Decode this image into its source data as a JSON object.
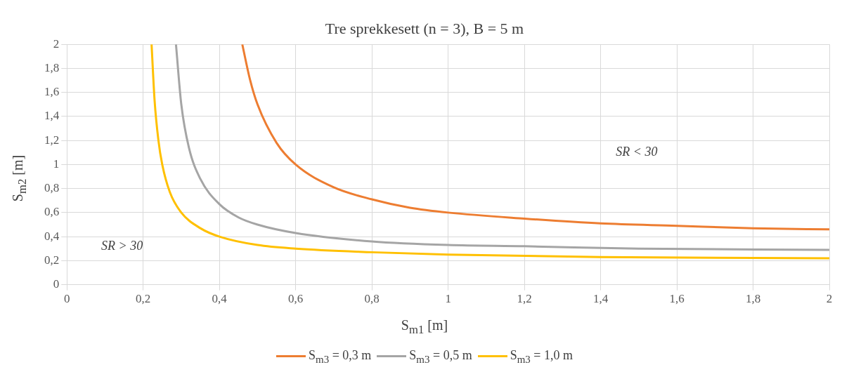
{
  "chart_data": {
    "type": "line",
    "title": "Tre sprekkesett (n = 3), B = 5 m",
    "xlabel": "S$_{m1}$ [m]",
    "ylabel": "S$_{m2}$ [m]",
    "xlim": [
      0,
      2
    ],
    "ylim": [
      0,
      2
    ],
    "xticks": [
      0,
      {
        "value": 0.2,
        "label": "0,2"
      },
      {
        "value": 0.4,
        "label": "0,4"
      },
      {
        "value": 0.6,
        "label": "0,6"
      },
      {
        "value": 0.8,
        "label": "0,8"
      },
      1,
      {
        "value": 1.2,
        "label": "1,2"
      },
      {
        "value": 1.4,
        "label": "1,4"
      },
      {
        "value": 1.6,
        "label": "1,6"
      },
      {
        "value": 1.8,
        "label": "1,8"
      },
      2
    ],
    "yticks": [
      0,
      {
        "value": 0.2,
        "label": "0,2"
      },
      {
        "value": 0.4,
        "label": "0,4"
      },
      {
        "value": 0.6,
        "label": "0,6"
      },
      {
        "value": 0.8,
        "label": "0,8"
      },
      1,
      {
        "value": 1.2,
        "label": "1,2"
      },
      {
        "value": 1.4,
        "label": "1,4"
      },
      {
        "value": 1.6,
        "label": "1,6"
      },
      {
        "value": 1.8,
        "label": "1,8"
      },
      2
    ],
    "grid": true,
    "legend": "bottom",
    "marker": "none",
    "line_style": "solid",
    "annotations": [
      "SR > 30",
      "SR < 30"
    ],
    "series": [
      {
        "name": "S$_{m3}$ = 0,3 m",
        "color": "#ed7d31",
        "x": [
          0.46,
          0.48,
          0.5,
          0.55,
          0.6,
          0.7,
          0.8,
          0.9,
          1.0,
          1.2,
          1.4,
          1.6,
          1.8,
          2.0
        ],
        "values": [
          2,
          1.71,
          1.5,
          1.18,
          1.0,
          0.81,
          0.71,
          0.64,
          0.6,
          0.55,
          0.51,
          0.49,
          0.47,
          0.46
        ]
      },
      {
        "name": "S$_{m3}$ = 0,5 m",
        "color": "#a5a5a5",
        "x": [
          0.286,
          0.3,
          0.32,
          0.35,
          0.4,
          0.45,
          0.5,
          0.6,
          0.8,
          1.0,
          1.2,
          1.5,
          2.0
        ],
        "values": [
          2,
          1.5,
          1.14,
          0.88,
          0.67,
          0.56,
          0.5,
          0.43,
          0.36,
          0.33,
          0.32,
          0.3,
          0.29
        ]
      },
      {
        "name": "S$_{m3}$ = 1,0 m",
        "color": "#ffc000",
        "x": [
          0.222,
          0.23,
          0.24,
          0.25,
          0.27,
          0.3,
          0.35,
          0.4,
          0.5,
          0.6,
          0.8,
          1.0,
          1.4,
          2.0
        ],
        "values": [
          2,
          1.53,
          1.2,
          1.0,
          0.77,
          0.6,
          0.47,
          0.4,
          0.33,
          0.3,
          0.27,
          0.25,
          0.23,
          0.22
        ]
      }
    ]
  }
}
